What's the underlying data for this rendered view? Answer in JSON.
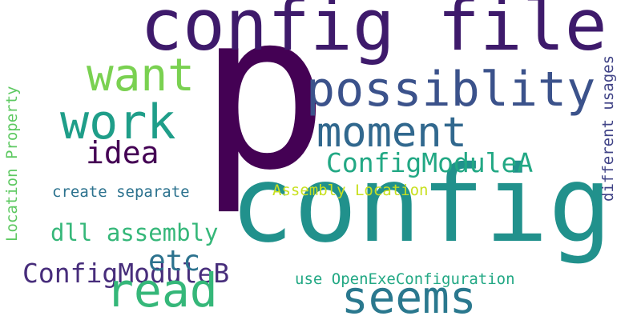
{
  "cloud": {
    "words": [
      {
        "id": "p",
        "text": "p",
        "color": "#440154"
      },
      {
        "id": "config",
        "text": "config",
        "color": "#21918c"
      },
      {
        "id": "config-file",
        "text": "config file",
        "color": "#3e1a6b"
      },
      {
        "id": "possiblity",
        "text": "possiblity",
        "color": "#3b528b"
      },
      {
        "id": "want",
        "text": "want",
        "color": "#7ad151"
      },
      {
        "id": "work",
        "text": "work",
        "color": "#1f9e89"
      },
      {
        "id": "moment",
        "text": "moment",
        "color": "#31688e"
      },
      {
        "id": "idea",
        "text": "idea",
        "color": "#440154"
      },
      {
        "id": "config-module-a",
        "text": "ConfigModuleA",
        "color": "#22a884"
      },
      {
        "id": "config-module-b",
        "text": "ConfigModuleB",
        "color": "#472d7b"
      },
      {
        "id": "create-separate",
        "text": "create separate",
        "color": "#2c728e"
      },
      {
        "id": "assembly-location",
        "text": "Assembly Location",
        "color": "#c8e020"
      },
      {
        "id": "dll-assembly",
        "text": "dll assembly",
        "color": "#35b779"
      },
      {
        "id": "etc",
        "text": "etc",
        "color": "#2c728e"
      },
      {
        "id": "read",
        "text": "read",
        "color": "#35b779"
      },
      {
        "id": "seems",
        "text": "seems",
        "color": "#2a788e"
      },
      {
        "id": "use-open-exe-configuration",
        "text": "use OpenExeConfiguration",
        "color": "#22a884"
      },
      {
        "id": "location-property",
        "text": "Location Property",
        "color": "#5ec962"
      },
      {
        "id": "different-usages",
        "text": "different usages",
        "color": "#414487"
      }
    ]
  }
}
